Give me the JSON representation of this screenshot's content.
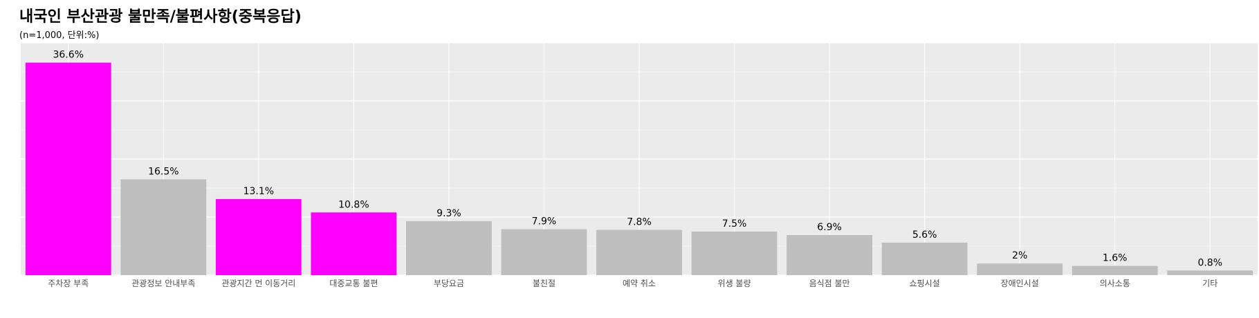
{
  "chart_data": {
    "type": "bar",
    "title": "내국인 부산관광 불만족/불편사항(중복응답)",
    "subtitle": "(n=1,000, 단위:%)",
    "categories": [
      "주차장 부족",
      "관광정보 안내부족",
      "관광지간 먼 이동거리",
      "대중교통 불편",
      "부당요금",
      "불친절",
      "예약 취소",
      "위생 불량",
      "음식점 불만",
      "쇼핑시설",
      "장애인시설",
      "의사소통",
      "기타"
    ],
    "values": [
      36.6,
      16.5,
      13.1,
      10.8,
      9.3,
      7.9,
      7.8,
      7.5,
      6.9,
      5.6,
      2,
      1.6,
      0.8
    ],
    "labels": [
      "36.6%",
      "16.5%",
      "13.1%",
      "10.8%",
      "9.3%",
      "7.9%",
      "7.8%",
      "7.5%",
      "6.9%",
      "5.6%",
      "2%",
      "1.6%",
      "0.8%"
    ],
    "highlighted": [
      true,
      false,
      true,
      true,
      false,
      false,
      false,
      false,
      false,
      false,
      false,
      false,
      false
    ],
    "ylim": [
      0,
      40
    ],
    "grid": true,
    "legend": "none",
    "colors": {
      "highlight": "#ff00ff",
      "default": "#bebebe",
      "panel": "#ebebeb",
      "grid": "#ffffff"
    }
  }
}
